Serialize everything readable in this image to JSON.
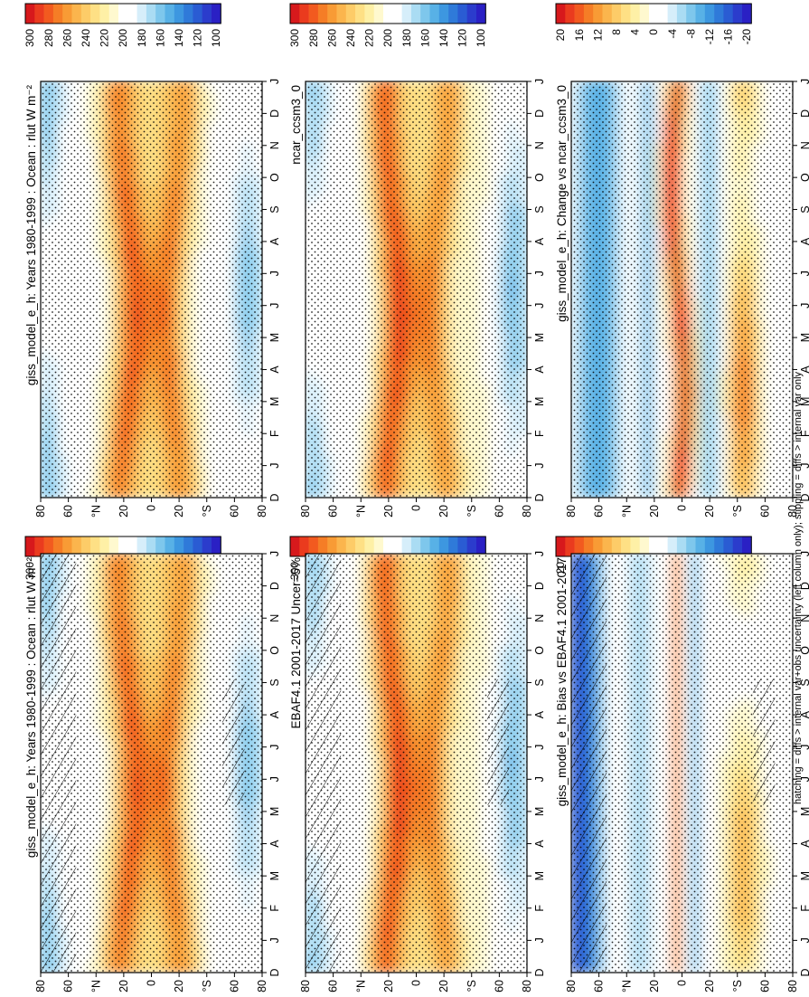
{
  "figure": {
    "footnote": "hatching = diffs > internal var+obs uncertainty (left column only); stippling = diffs > internal var only"
  },
  "months": [
    "D",
    "J",
    "F",
    "M",
    "A",
    "M",
    "J",
    "J",
    "A",
    "S",
    "O",
    "N",
    "D",
    "J"
  ],
  "lat_ticks": [
    "80",
    "60",
    "°N",
    "20",
    "0",
    "20",
    "°S",
    "60",
    "80"
  ],
  "colorbars": {
    "abs": {
      "labels": [
        "300",
        "280",
        "260",
        "240",
        "220",
        "200",
        "180",
        "160",
        "140",
        "120",
        "100"
      ],
      "colors": [
        "#d7191c",
        "#ea3b1e",
        "#f25a1f",
        "#f57d26",
        "#f89b35",
        "#fbb54d",
        "#fdcc68",
        "#fee085",
        "#fef0a6",
        "#fff9cf",
        "#ffffff",
        "#ffffff",
        "#d6eefa",
        "#aadcf3",
        "#7ec7ec",
        "#58b1e6",
        "#3d97e0",
        "#2f7ad9",
        "#2a5cd3",
        "#2b3ccc",
        "#2a20c4"
      ]
    },
    "diff": {
      "labels": [
        "20",
        "16",
        "12",
        "8",
        "4",
        "0",
        "-4",
        "-8",
        "-12",
        "-16",
        "-20"
      ],
      "colors": [
        "#d7191c",
        "#ea3b1e",
        "#f25a1f",
        "#f57d26",
        "#f89b35",
        "#fbb54d",
        "#fdcc68",
        "#fee085",
        "#fef0a6",
        "#fff9cf",
        "#ffffff",
        "#ffffff",
        "#d6eefa",
        "#aadcf3",
        "#7ec7ec",
        "#58b1e6",
        "#3d97e0",
        "#2f7ad9",
        "#2a5cd3",
        "#2b3ccc",
        "#2a20c4"
      ]
    }
  },
  "chart_data": [
    {
      "type": "heatmap",
      "id": "p1",
      "title": "giss_model_e_h: Years 1980-1999 : Ocean : rlut W m⁻²",
      "x": "month",
      "y": "latitude",
      "z": "rlut",
      "zlim": [
        100,
        300
      ],
      "hatching": true,
      "stippling": true
    },
    {
      "type": "heatmap",
      "id": "p2",
      "title": "EBAF4.1 2001-2017 Uncer=5%",
      "x": "month",
      "y": "latitude",
      "z": "rlut",
      "zlim": [
        100,
        300
      ],
      "hatching": true,
      "stippling": true
    },
    {
      "type": "heatmap",
      "id": "p3",
      "title": "giss_model_e_h: Bias vs EBAF4.1 2001-2017",
      "x": "month",
      "y": "latitude",
      "z": "rlut difference",
      "zlim": [
        -20,
        20
      ],
      "hatching": true,
      "stippling": true
    },
    {
      "type": "heatmap",
      "id": "p4",
      "title": "giss_model_e_h: Years 1980-1999 : Ocean : rlut W m⁻²",
      "x": "month",
      "y": "latitude",
      "z": "rlut",
      "zlim": [
        100,
        300
      ],
      "hatching": false,
      "stippling": true
    },
    {
      "type": "heatmap",
      "id": "p5",
      "title": "ncar_ccsm3_0",
      "x": "month",
      "y": "latitude",
      "z": "rlut",
      "zlim": [
        100,
        300
      ],
      "hatching": false,
      "stippling": true
    },
    {
      "type": "heatmap",
      "id": "p6",
      "title": "giss_model_e_h: Change vs ncar_ccsm3_0",
      "x": "month",
      "y": "latitude",
      "z": "rlut difference",
      "zlim": [
        -20,
        20
      ],
      "hatching": false,
      "stippling": true
    }
  ]
}
